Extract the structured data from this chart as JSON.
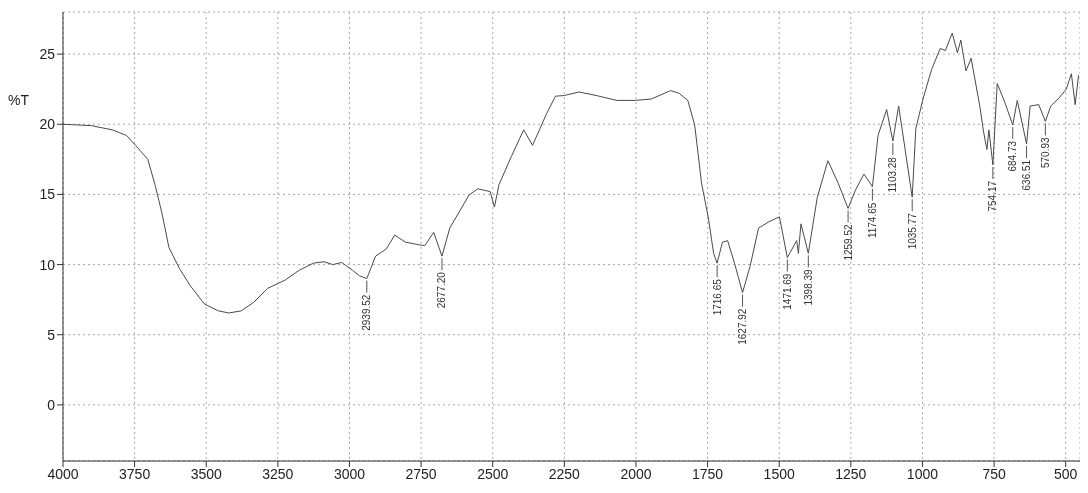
{
  "chart_data": {
    "type": "line",
    "ylabel": "%T",
    "x": [
      4000,
      3901,
      3828,
      3778,
      3747,
      3704,
      3679,
      3655,
      3630,
      3593,
      3556,
      3507,
      3458,
      3421,
      3378,
      3335,
      3286,
      3224,
      3175,
      3126,
      3089,
      3058,
      3027,
      2990,
      2965,
      2939.52,
      2909,
      2872,
      2842,
      2805,
      2756,
      2737,
      2706,
      2677.2,
      2650,
      2607,
      2583,
      2552,
      2509,
      2494,
      2478,
      2435,
      2392,
      2361,
      2337,
      2312,
      2281,
      2250,
      2199,
      2139,
      2067,
      2003,
      1946,
      1879,
      1849,
      1819,
      1795,
      1771,
      1747,
      1729,
      1716.65,
      1698,
      1680,
      1656,
      1627.92,
      1602,
      1572,
      1536,
      1499,
      1471.69,
      1439,
      1433,
      1424,
      1398.39,
      1367,
      1330,
      1294,
      1259.52,
      1234,
      1204,
      1174.65,
      1155,
      1125,
      1103.28,
      1083,
      1035.77,
      1023,
      998,
      968,
      938,
      920,
      896,
      878,
      866,
      848,
      830,
      799,
      787,
      775,
      768,
      754.17,
      739,
      715,
      684.73,
      669,
      636.51,
      624,
      594,
      570.93,
      552,
      522,
      498,
      480,
      467,
      455
    ],
    "series": [
      {
        "color": "#4a4a4a",
        "values": [
          20.0,
          19.9,
          19.6,
          19.2,
          18.5,
          17.5,
          15.7,
          13.7,
          11.2,
          9.7,
          8.5,
          7.2,
          6.7,
          6.55,
          6.7,
          7.3,
          8.3,
          8.9,
          9.6,
          10.1,
          10.2,
          10.0,
          10.15,
          9.6,
          9.2,
          9.0,
          10.6,
          11.1,
          12.1,
          11.6,
          11.4,
          11.35,
          12.3,
          10.6,
          12.6,
          14.1,
          14.95,
          15.4,
          15.2,
          14.1,
          15.7,
          17.7,
          19.6,
          18.5,
          19.6,
          20.75,
          22.0,
          22.05,
          22.3,
          22.05,
          21.7,
          21.7,
          21.8,
          22.4,
          22.2,
          21.7,
          19.95,
          15.8,
          13.3,
          10.8,
          10.1,
          11.6,
          11.7,
          10.1,
          8.0,
          9.85,
          12.6,
          13.05,
          13.4,
          10.5,
          11.7,
          10.8,
          12.9,
          10.8,
          14.8,
          17.4,
          15.8,
          14.0,
          15.3,
          16.45,
          15.55,
          19.2,
          21.05,
          18.8,
          21.3,
          14.8,
          19.7,
          21.8,
          23.9,
          25.4,
          25.25,
          26.5,
          25.1,
          26.0,
          23.8,
          24.7,
          21.2,
          19.5,
          18.2,
          19.6,
          17.1,
          22.9,
          21.7,
          19.95,
          21.7,
          18.6,
          21.3,
          21.4,
          20.2,
          21.3,
          21.9,
          22.5,
          23.6,
          21.4,
          23.5
        ]
      }
    ],
    "xlim": [
      4000,
      450
    ],
    "xticks": [
      4000,
      3750,
      3500,
      3250,
      3000,
      2750,
      2500,
      2250,
      2000,
      1750,
      1500,
      1250,
      1000,
      750,
      500
    ],
    "ylim": [
      -4,
      28
    ],
    "yticks": [
      0,
      5,
      10,
      15,
      20,
      25
    ],
    "grid": true,
    "legend": false,
    "marker": "none",
    "line_style": "solid",
    "annotations": [
      {
        "text": "2939.52",
        "x": 2939.52,
        "y": 9.0
      },
      {
        "text": "2677.20",
        "x": 2677.2,
        "y": 10.6
      },
      {
        "text": "1716.65",
        "x": 1716.65,
        "y": 10.1
      },
      {
        "text": "1627.92",
        "x": 1627.92,
        "y": 8.0
      },
      {
        "text": "1471.69",
        "x": 1471.69,
        "y": 10.5
      },
      {
        "text": "1398.39",
        "x": 1398.39,
        "y": 10.8
      },
      {
        "text": "1259.52",
        "x": 1259.52,
        "y": 14.0
      },
      {
        "text": "1174.65",
        "x": 1174.65,
        "y": 15.55
      },
      {
        "text": "1103.28",
        "x": 1103.28,
        "y": 18.8
      },
      {
        "text": "1035.77",
        "x": 1035.77,
        "y": 14.8
      },
      {
        "text": "754.17",
        "x": 754.17,
        "y": 17.1
      },
      {
        "text": "684.73",
        "x": 684.73,
        "y": 19.95
      },
      {
        "text": "636.51",
        "x": 636.51,
        "y": 18.6
      },
      {
        "text": "570.93",
        "x": 570.93,
        "y": 20.2
      }
    ]
  }
}
